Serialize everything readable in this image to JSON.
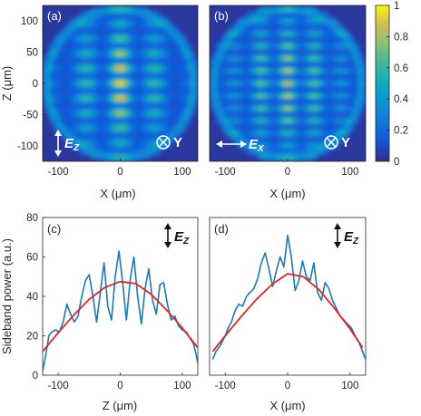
{
  "chart_data": [
    {
      "type": "heatmap",
      "panel": "(a)",
      "xlabel": "X (μm)",
      "ylabel": "Z (μm)",
      "xlim": [
        -125,
        125
      ],
      "ylim": [
        -125,
        125
      ],
      "xticks": [
        "-100",
        "0",
        "100"
      ],
      "yticks": [
        "100",
        "50",
        "0",
        "-50",
        "-100"
      ],
      "pol_label": "E",
      "pol_sub": "Z",
      "axis_label": "Y"
    },
    {
      "type": "heatmap",
      "panel": "(b)",
      "xlabel": "X (μm)",
      "ylabel": "",
      "xlim": [
        -125,
        125
      ],
      "ylim": [
        -125,
        125
      ],
      "xticks": [
        "-100",
        "0",
        "100"
      ],
      "pol_label": "E",
      "pol_sub": "X",
      "axis_label": "Y"
    },
    {
      "type": "colorbar",
      "range": [
        0,
        1
      ],
      "ticks": [
        "1",
        "0.8",
        "0.6",
        "0.4",
        "0.2",
        "0"
      ]
    },
    {
      "type": "line",
      "panel": "(c)",
      "xlabel": "Z (μm)",
      "ylabel": "Sideband power (a.u.)",
      "xlim": [
        -125,
        125
      ],
      "ylim": [
        0,
        80
      ],
      "xticks": [
        "-100",
        "0",
        "100"
      ],
      "yticks": [
        "80",
        "60",
        "40",
        "20",
        "0"
      ],
      "pol_label": "E",
      "pol_sub": "Z",
      "series": [
        {
          "color": "#1f77b4",
          "x": [
            -125,
            -120,
            -115,
            -110,
            -104,
            -98,
            -92,
            -86,
            -80,
            -74,
            -68,
            -62,
            -56,
            -50,
            -44,
            -38,
            -32,
            -26,
            -20,
            -14,
            -8,
            -2,
            4,
            10,
            16,
            22,
            28,
            34,
            40,
            46,
            52,
            58,
            64,
            70,
            76,
            82,
            88,
            94,
            100,
            106,
            112,
            118,
            122,
            125
          ],
          "y": [
            2,
            10,
            20,
            22,
            23,
            22,
            27,
            36,
            31,
            27,
            30,
            40,
            48,
            51,
            40,
            27,
            42,
            57,
            35,
            28,
            50,
            63,
            47,
            28,
            48,
            60,
            40,
            26,
            44,
            54,
            38,
            31,
            46,
            47,
            36,
            28,
            30,
            25,
            23,
            22,
            19,
            16,
            11,
            6
          ]
        },
        {
          "color": "#d62728",
          "x": [
            -125,
            -100,
            -75,
            -50,
            -25,
            0,
            25,
            50,
            75,
            100,
            125
          ],
          "y": [
            12,
            21.5,
            30.5,
            38.5,
            44.5,
            47.5,
            46.5,
            41,
            33,
            24,
            14
          ]
        }
      ]
    },
    {
      "type": "line",
      "panel": "(d)",
      "xlabel": "X (μm)",
      "ylabel": "",
      "xlim": [
        -125,
        125
      ],
      "ylim": [
        0,
        80
      ],
      "xticks": [
        "-100",
        "0",
        "100"
      ],
      "pol_label": "E",
      "pol_sub": "Z",
      "series": [
        {
          "color": "#1f77b4",
          "x": [
            -120,
            -115,
            -108,
            -100,
            -95,
            -90,
            -84,
            -78,
            -72,
            -66,
            -60,
            -54,
            -48,
            -42,
            -36,
            -30,
            -24,
            -18,
            -12,
            -6,
            0,
            6,
            12,
            18,
            24,
            30,
            36,
            42,
            48,
            54,
            60,
            66,
            72,
            78,
            84,
            90,
            96,
            102,
            108,
            114,
            120,
            125
          ],
          "y": [
            8,
            12,
            15,
            20,
            24,
            27,
            33,
            36,
            35,
            40,
            42,
            44,
            49,
            57,
            62,
            54,
            45,
            53,
            60,
            55,
            71,
            60,
            43,
            48,
            58,
            50,
            48,
            57,
            42,
            38,
            47,
            44,
            38,
            34,
            30,
            28,
            26,
            24,
            20,
            17,
            12,
            8
          ]
        },
        {
          "color": "#d62728",
          "x": [
            -120,
            -100,
            -75,
            -50,
            -25,
            0,
            25,
            50,
            75,
            100,
            120
          ],
          "y": [
            12,
            20,
            29.5,
            38.5,
            46,
            51.5,
            50,
            43.5,
            34,
            23.5,
            14
          ]
        }
      ]
    }
  ]
}
